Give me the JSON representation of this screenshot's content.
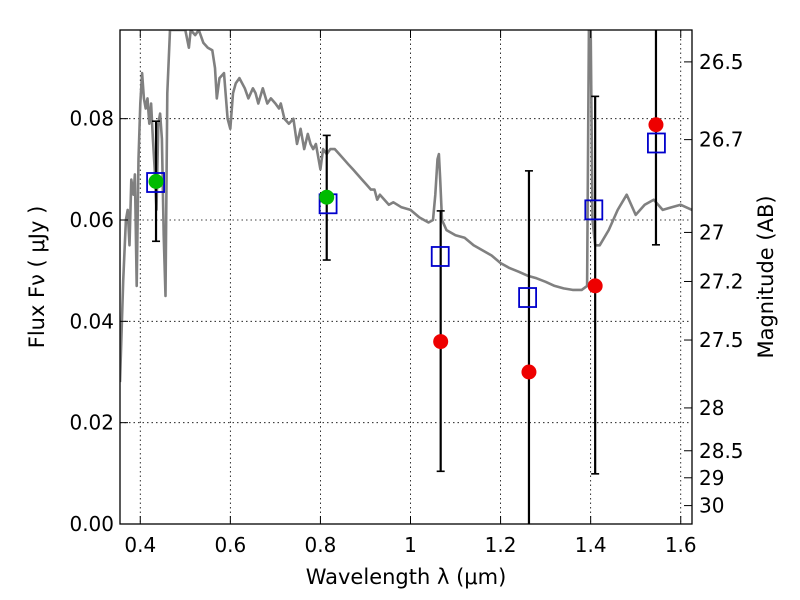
{
  "chart_data": {
    "type": "scatter",
    "xlabel": "Wavelength  λ (μm)",
    "ylabel_left": "Flux  Fν  ( μJy )",
    "ylabel_right": "Magnitude (AB)",
    "xlim": [
      0.355,
      1.625
    ],
    "ylim": [
      0.0,
      0.0975
    ],
    "grid": true,
    "x_ticks": [
      {
        "value": 0.4,
        "label": "0.4"
      },
      {
        "value": 0.6,
        "label": "0.6"
      },
      {
        "value": 0.8,
        "label": "0.8"
      },
      {
        "value": 1.0,
        "label": "1"
      },
      {
        "value": 1.2,
        "label": "1.2"
      },
      {
        "value": 1.4,
        "label": "1.4"
      },
      {
        "value": 1.6,
        "label": "1.6"
      }
    ],
    "y_ticks": [
      {
        "value": 0.0,
        "label": "0.00"
      },
      {
        "value": 0.02,
        "label": "0.02"
      },
      {
        "value": 0.04,
        "label": "0.04"
      },
      {
        "value": 0.06,
        "label": "0.06"
      },
      {
        "value": 0.08,
        "label": "0.08"
      }
    ],
    "mag_ticks": [
      {
        "value": 26.5,
        "label": "26.5"
      },
      {
        "value": 26.7,
        "label": "26.7"
      },
      {
        "value": 27.0,
        "label": "27"
      },
      {
        "value": 27.2,
        "label": "27.2"
      },
      {
        "value": 27.5,
        "label": "27.5"
      },
      {
        "value": 28.0,
        "label": "28"
      },
      {
        "value": 28.5,
        "label": "28.5"
      },
      {
        "value": 29.0,
        "label": "29"
      },
      {
        "value": 30.0,
        "label": "30"
      }
    ],
    "series": [
      {
        "kind": "errorbar",
        "color": "#000000",
        "points": [
          {
            "x": 0.435,
            "y": 0.0676,
            "ylo": 0.0558,
            "yhi": 0.0795
          },
          {
            "x": 0.814,
            "y": 0.0645,
            "ylo": 0.0521,
            "yhi": 0.0767
          },
          {
            "x": 1.067,
            "y": 0.036,
            "ylo": 0.0104,
            "yhi": 0.0618
          },
          {
            "x": 1.263,
            "y": 0.03,
            "ylo": 0.0,
            "yhi": 0.0697
          },
          {
            "x": 1.41,
            "y": 0.047,
            "ylo": 0.0099,
            "yhi": 0.0844
          },
          {
            "x": 1.545,
            "y": 0.0788,
            "ylo": 0.0551,
            "yhi": 0.0975
          }
        ]
      },
      {
        "kind": "scatter",
        "marker": "open-square",
        "color": "#0000cc",
        "points": [
          {
            "x": 0.434,
            "y": 0.0674
          },
          {
            "x": 0.817,
            "y": 0.0632
          },
          {
            "x": 1.066,
            "y": 0.0528
          },
          {
            "x": 1.26,
            "y": 0.0447
          },
          {
            "x": 1.407,
            "y": 0.062
          },
          {
            "x": 1.546,
            "y": 0.0752
          }
        ]
      },
      {
        "kind": "scatter",
        "marker": "filled-circle",
        "color": "#00bb00",
        "points": [
          {
            "x": 0.435,
            "y": 0.0676
          },
          {
            "x": 0.814,
            "y": 0.0645
          }
        ]
      },
      {
        "kind": "scatter",
        "marker": "filled-circle",
        "color": "#ee0000",
        "points": [
          {
            "x": 1.067,
            "y": 0.036
          },
          {
            "x": 1.263,
            "y": 0.03
          },
          {
            "x": 1.41,
            "y": 0.047
          },
          {
            "x": 1.545,
            "y": 0.0788
          }
        ]
      },
      {
        "kind": "line",
        "color": "#808080",
        "points": [
          [
            0.355,
            0.028
          ],
          [
            0.362,
            0.048
          ],
          [
            0.368,
            0.06
          ],
          [
            0.372,
            0.062
          ],
          [
            0.376,
            0.055
          ],
          [
            0.38,
            0.068
          ],
          [
            0.385,
            0.065
          ],
          [
            0.388,
            0.069
          ],
          [
            0.392,
            0.047
          ],
          [
            0.396,
            0.072
          ],
          [
            0.4,
            0.083
          ],
          [
            0.404,
            0.089
          ],
          [
            0.408,
            0.084
          ],
          [
            0.412,
            0.082
          ],
          [
            0.416,
            0.084
          ],
          [
            0.42,
            0.079
          ],
          [
            0.424,
            0.083
          ],
          [
            0.428,
            0.076
          ],
          [
            0.432,
            0.07
          ],
          [
            0.436,
            0.062
          ],
          [
            0.44,
            0.079
          ],
          [
            0.444,
            0.081
          ],
          [
            0.448,
            0.076
          ],
          [
            0.452,
            0.057
          ],
          [
            0.456,
            0.045
          ],
          [
            0.46,
            0.085
          ],
          [
            0.466,
            0.0975
          ],
          [
            0.5,
            0.0975
          ],
          [
            0.508,
            0.094
          ],
          [
            0.512,
            0.0975
          ],
          [
            0.522,
            0.0965
          ],
          [
            0.53,
            0.0975
          ],
          [
            0.54,
            0.095
          ],
          [
            0.55,
            0.094
          ],
          [
            0.56,
            0.0935
          ],
          [
            0.566,
            0.09
          ],
          [
            0.57,
            0.084
          ],
          [
            0.576,
            0.088
          ],
          [
            0.586,
            0.089
          ],
          [
            0.594,
            0.08
          ],
          [
            0.6,
            0.078
          ],
          [
            0.606,
            0.085
          ],
          [
            0.612,
            0.087
          ],
          [
            0.62,
            0.088
          ],
          [
            0.632,
            0.086
          ],
          [
            0.64,
            0.084
          ],
          [
            0.65,
            0.086
          ],
          [
            0.656,
            0.085
          ],
          [
            0.662,
            0.083
          ],
          [
            0.672,
            0.086
          ],
          [
            0.682,
            0.083
          ],
          [
            0.69,
            0.084
          ],
          [
            0.7,
            0.083
          ],
          [
            0.708,
            0.082
          ],
          [
            0.712,
            0.083
          ],
          [
            0.72,
            0.08
          ],
          [
            0.73,
            0.079
          ],
          [
            0.74,
            0.08
          ],
          [
            0.748,
            0.075
          ],
          [
            0.756,
            0.078
          ],
          [
            0.764,
            0.074
          ],
          [
            0.772,
            0.077
          ],
          [
            0.778,
            0.075
          ],
          [
            0.784,
            0.074
          ],
          [
            0.79,
            0.075
          ],
          [
            0.796,
            0.072
          ],
          [
            0.8,
            0.07
          ],
          [
            0.806,
            0.074
          ],
          [
            0.814,
            0.073
          ],
          [
            0.822,
            0.074
          ],
          [
            0.832,
            0.074
          ],
          [
            0.842,
            0.073
          ],
          [
            0.852,
            0.072
          ],
          [
            0.862,
            0.071
          ],
          [
            0.872,
            0.07
          ],
          [
            0.882,
            0.069
          ],
          [
            0.892,
            0.068
          ],
          [
            0.902,
            0.067
          ],
          [
            0.912,
            0.066
          ],
          [
            0.92,
            0.066
          ],
          [
            0.926,
            0.064
          ],
          [
            0.932,
            0.065
          ],
          [
            0.942,
            0.064
          ],
          [
            0.952,
            0.063
          ],
          [
            0.962,
            0.0635
          ],
          [
            0.98,
            0.0625
          ],
          [
            1.0,
            0.062
          ],
          [
            1.02,
            0.0605
          ],
          [
            1.04,
            0.0595
          ],
          [
            1.05,
            0.06
          ],
          [
            1.055,
            0.065
          ],
          [
            1.06,
            0.072
          ],
          [
            1.063,
            0.073
          ],
          [
            1.066,
            0.068
          ],
          [
            1.07,
            0.06
          ],
          [
            1.08,
            0.058
          ],
          [
            1.1,
            0.057
          ],
          [
            1.12,
            0.0565
          ],
          [
            1.14,
            0.055
          ],
          [
            1.16,
            0.054
          ],
          [
            1.18,
            0.053
          ],
          [
            1.2,
            0.0515
          ],
          [
            1.22,
            0.0505
          ],
          [
            1.24,
            0.0498
          ],
          [
            1.26,
            0.049
          ],
          [
            1.28,
            0.0485
          ],
          [
            1.3,
            0.0478
          ],
          [
            1.32,
            0.047
          ],
          [
            1.34,
            0.0465
          ],
          [
            1.36,
            0.0462
          ],
          [
            1.38,
            0.0462
          ],
          [
            1.392,
            0.047
          ],
          [
            1.396,
            0.0975
          ],
          [
            1.4,
            0.0975
          ],
          [
            1.404,
            0.06
          ],
          [
            1.41,
            0.055
          ],
          [
            1.42,
            0.055
          ],
          [
            1.44,
            0.058
          ],
          [
            1.46,
            0.062
          ],
          [
            1.48,
            0.065
          ],
          [
            1.5,
            0.061
          ],
          [
            1.52,
            0.063
          ],
          [
            1.54,
            0.064
          ],
          [
            1.56,
            0.062
          ],
          [
            1.58,
            0.0625
          ],
          [
            1.6,
            0.063
          ],
          [
            1.625,
            0.062
          ]
        ]
      }
    ]
  }
}
